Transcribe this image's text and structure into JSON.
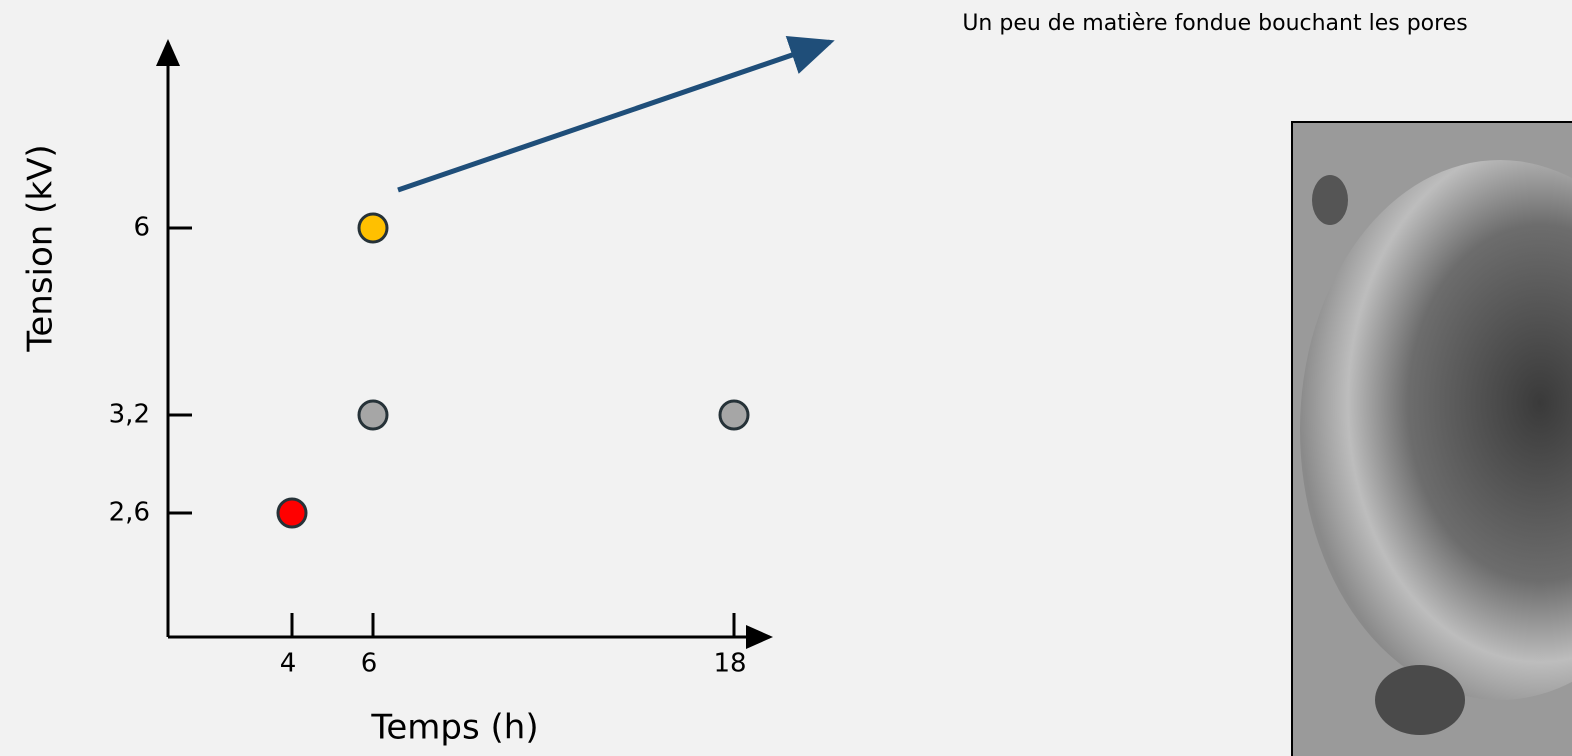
{
  "chart_data": {
    "type": "scatter",
    "x_label": "Temps (h)",
    "y_label": "Tension (kV)",
    "x": [
      4,
      6,
      18,
      6
    ],
    "y": [
      2.6,
      3.2,
      3.2,
      6
    ],
    "colors": [
      "#ff0000",
      "#a6a6a6",
      "#a6a6a6",
      "#ffc000"
    ],
    "xticks": [
      4,
      6,
      18
    ],
    "yticks": [
      {
        "value": 2.6,
        "label": "2,6"
      },
      {
        "value": 3.2,
        "label": "3,2"
      },
      6
    ],
    "annotation": "Un peu de matière fondue bouchant les pores"
  }
}
